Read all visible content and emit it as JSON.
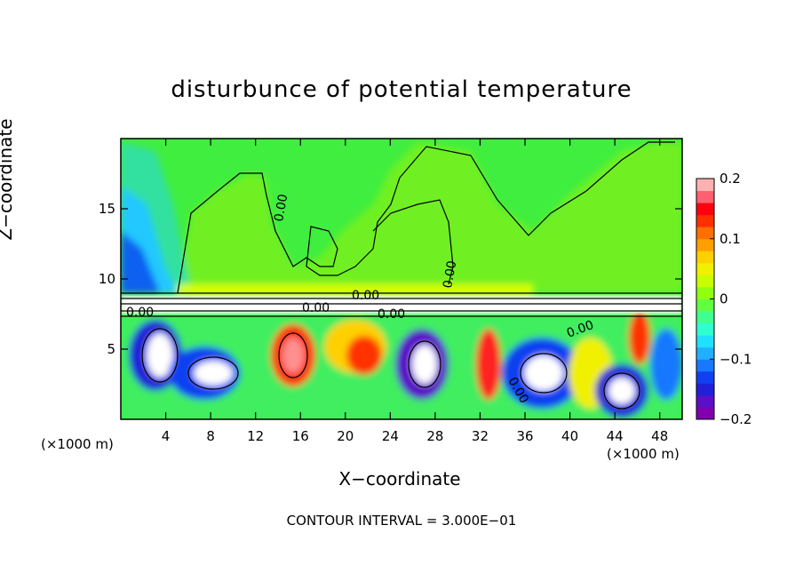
{
  "chart_data": {
    "type": "heatmap",
    "title": "disturbunce of potential temperature",
    "xlabel": "X−coordinate",
    "ylabel": "Z−coordinate",
    "x_unit_label": "(×1000 m)",
    "x_ticks": [
      4,
      8,
      12,
      16,
      20,
      24,
      28,
      32,
      36,
      40,
      44,
      48
    ],
    "y_ticks": [
      5,
      10,
      15
    ],
    "xlim": [
      0,
      50
    ],
    "ylim": [
      0,
      20
    ],
    "colorbar": {
      "ticks": [
        -0.2,
        -0.1,
        0,
        0.1,
        0.2
      ],
      "tick_labels": [
        "−0.2",
        "−0.1",
        "0",
        "0.1",
        "0.2"
      ],
      "range": [
        -0.2,
        0.2
      ],
      "colors": [
        "#8000b0",
        "#5a10c8",
        "#2020d8",
        "#1040f0",
        "#1878ff",
        "#20b0ff",
        "#20e0ff",
        "#30ffd0",
        "#40ff90",
        "#60ff40",
        "#90ff10",
        "#c8ff00",
        "#f0f000",
        "#ffd000",
        "#ffa000",
        "#ff7000",
        "#ff3000",
        "#ff0010",
        "#ff6070",
        "#ffb0b0"
      ]
    },
    "contour_labels": [
      "0.00",
      "0.00",
      "0.00",
      "0.00",
      "0.00",
      "0.00",
      "0.00",
      "0.00"
    ],
    "footer": "CONTOUR INTERVAL = 3.000E−01"
  }
}
